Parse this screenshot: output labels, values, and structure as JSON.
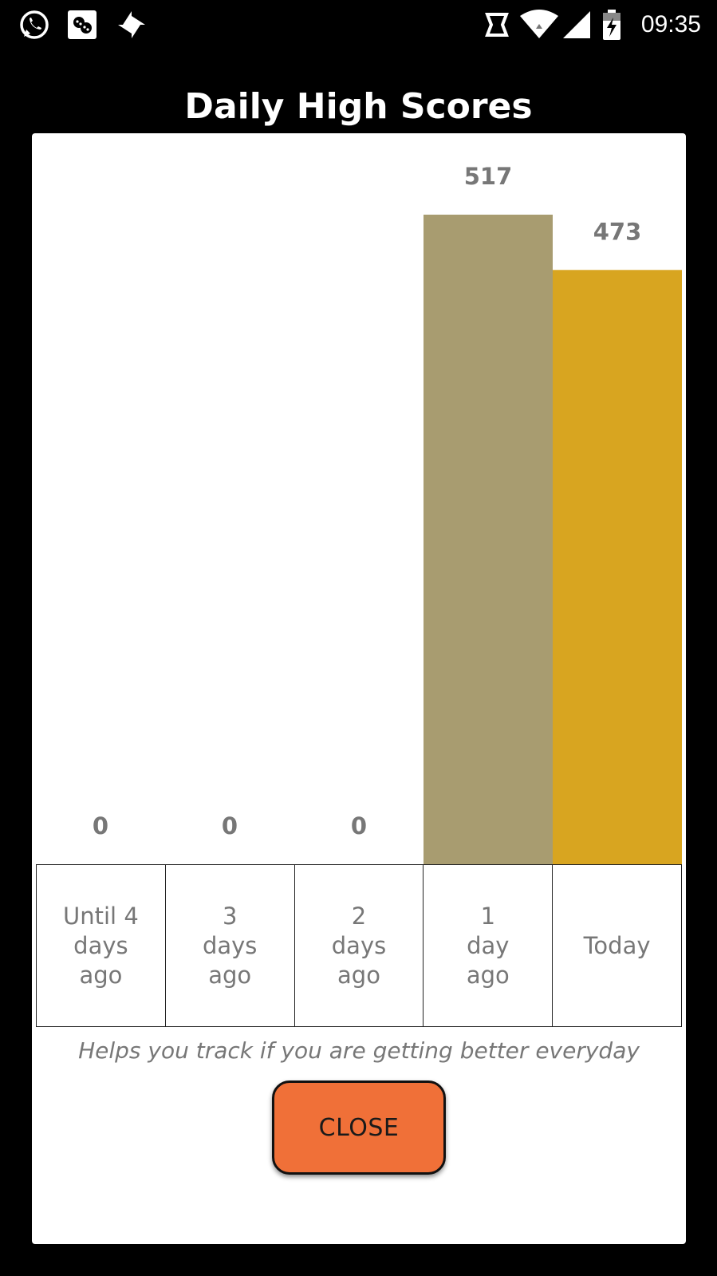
{
  "status_bar": {
    "time": "09:35",
    "left_icons": [
      "whatsapp-icon",
      "game-app-icon",
      "pinwheel-icon"
    ],
    "right_icons": [
      "data-transfer-icon",
      "wifi-icon",
      "signal-icon",
      "battery-charging-icon"
    ]
  },
  "dialog": {
    "title": "Daily High Scores",
    "caption": "Helps you track if you are getting better everyday",
    "close_label": "CLOSE"
  },
  "colors": {
    "bar_past": "#a89c70",
    "bar_today": "#d8a520",
    "close_button": "#f07038",
    "value_label": "#777777"
  },
  "chart_data": {
    "type": "bar",
    "title": "Daily High Scores",
    "categories": [
      "Until 4\ndays\nago",
      "3\ndays\nago",
      "2\ndays\nago",
      "1\nday\nago",
      "Today"
    ],
    "values": [
      0,
      0,
      0,
      517,
      473
    ],
    "value_labels": [
      "0",
      "0",
      "0",
      "517",
      "473"
    ],
    "xlabel": "",
    "ylabel": "",
    "ylim": [
      0,
      517
    ],
    "grid": false
  }
}
